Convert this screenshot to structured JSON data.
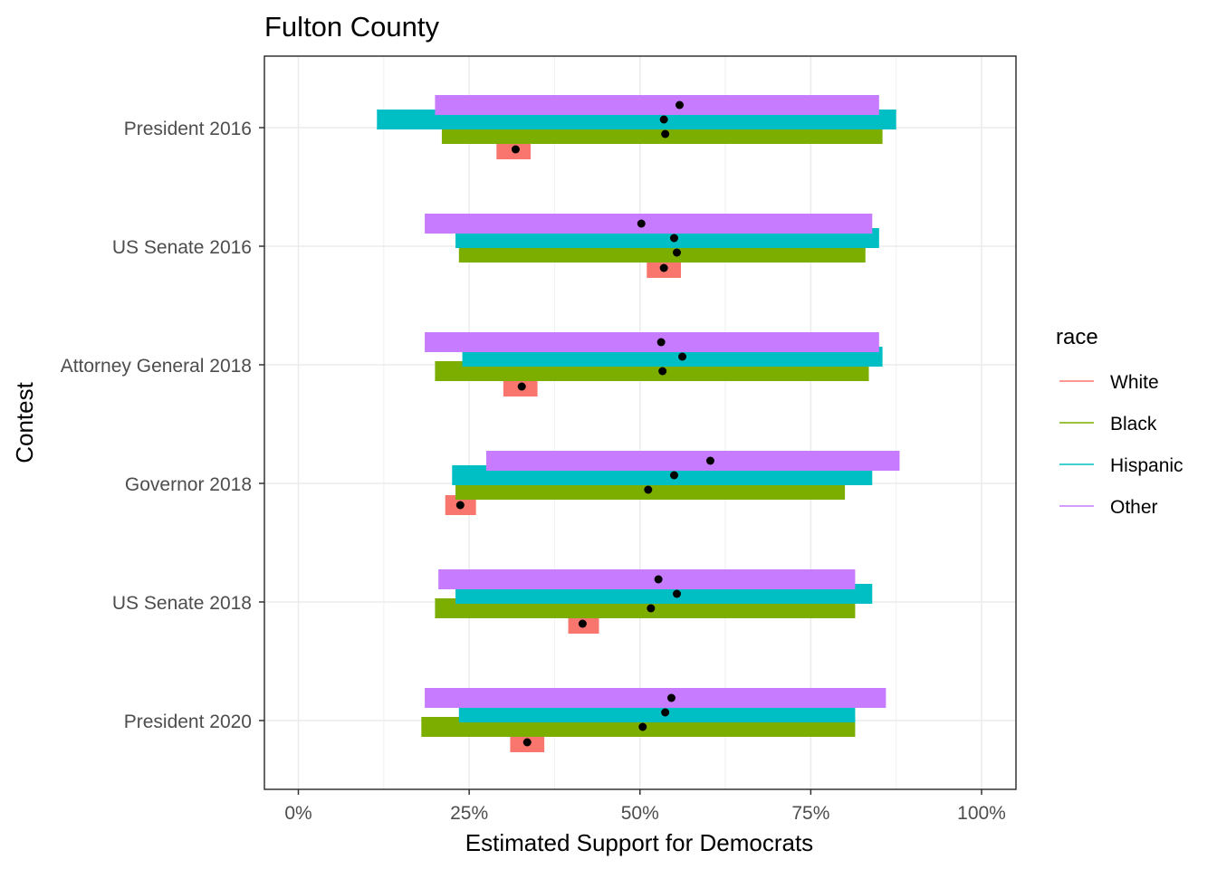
{
  "chart_data": {
    "type": "interval",
    "title": "Fulton County",
    "xlabel": "Estimated Support for Democrats",
    "ylabel": "Contest",
    "xlim": [
      -0.01,
      1.05
    ],
    "x_ticks": [
      0,
      0.25,
      0.5,
      0.75,
      1.0
    ],
    "x_tick_labels": [
      "0%",
      "25%",
      "50%",
      "75%",
      "100%"
    ],
    "grid": true,
    "legend": {
      "title": "race",
      "position": "right",
      "entries": [
        "White",
        "Black",
        "Hispanic",
        "Other"
      ]
    },
    "colors": {
      "White": "#F8766D",
      "Black": "#7CAE00",
      "Hispanic": "#00BFC4",
      "Other": "#C77CFF"
    },
    "categories": [
      "President 2016",
      "US Senate 2016",
      "Attorney General 2018",
      "Governor 2018",
      "US Senate 2018",
      "President 2020"
    ],
    "series": [
      {
        "name": "White",
        "lower": [
          0.29,
          0.51,
          0.3,
          0.215,
          0.395,
          0.31
        ],
        "estimate": [
          0.318,
          0.535,
          0.327,
          0.237,
          0.416,
          0.335
        ],
        "upper": [
          0.34,
          0.56,
          0.35,
          0.26,
          0.44,
          0.36
        ]
      },
      {
        "name": "Black",
        "lower": [
          0.21,
          0.235,
          0.2,
          0.23,
          0.2,
          0.18
        ],
        "estimate": [
          0.537,
          0.554,
          0.533,
          0.512,
          0.516,
          0.504
        ],
        "upper": [
          0.855,
          0.83,
          0.835,
          0.8,
          0.815,
          0.815
        ]
      },
      {
        "name": "Hispanic",
        "lower": [
          0.115,
          0.23,
          0.24,
          0.225,
          0.23,
          0.235
        ],
        "estimate": [
          0.535,
          0.55,
          0.562,
          0.55,
          0.554,
          0.537
        ],
        "upper": [
          0.875,
          0.85,
          0.855,
          0.84,
          0.84,
          0.815
        ]
      },
      {
        "name": "Other",
        "lower": [
          0.2,
          0.185,
          0.185,
          0.275,
          0.205,
          0.185
        ],
        "estimate": [
          0.558,
          0.502,
          0.531,
          0.603,
          0.527,
          0.546
        ],
        "upper": [
          0.85,
          0.84,
          0.85,
          0.88,
          0.815,
          0.86
        ]
      }
    ]
  }
}
